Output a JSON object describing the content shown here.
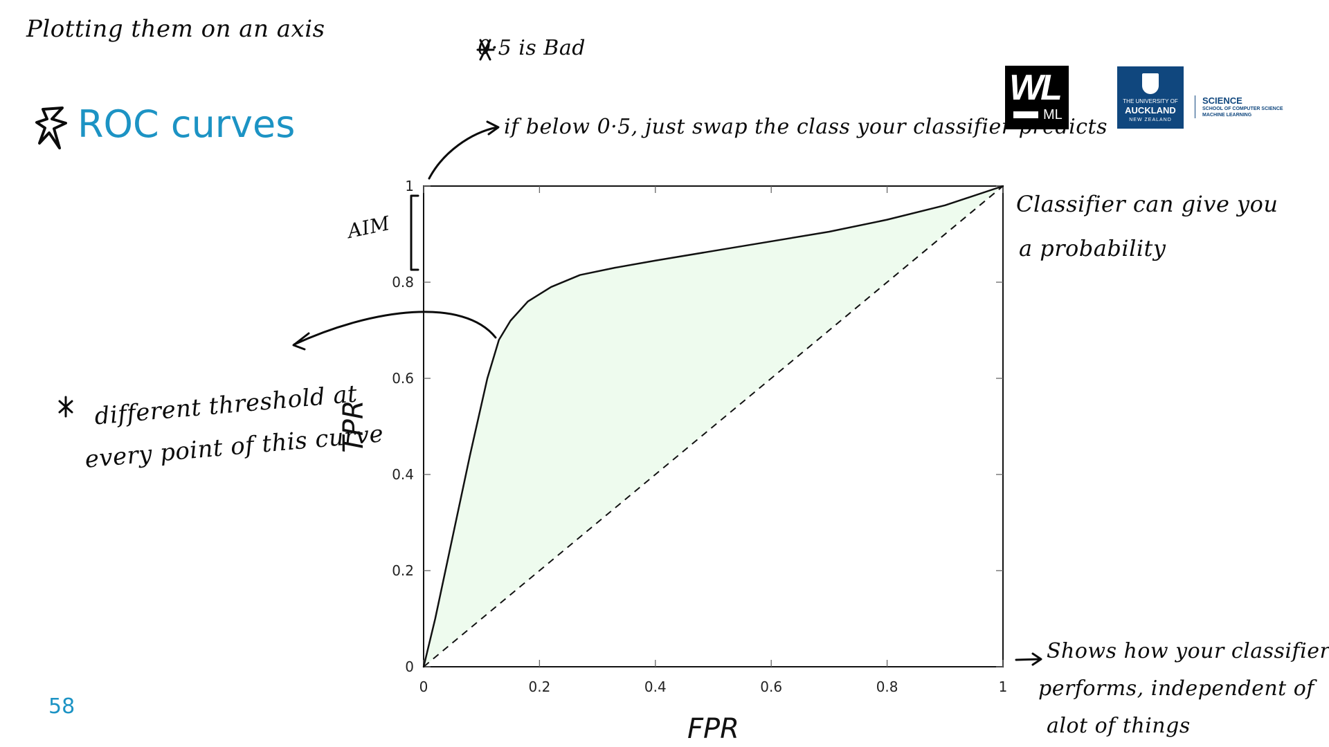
{
  "slide": {
    "title": "ROC curves",
    "page_number": "58"
  },
  "annotations": {
    "top_note": "Plotting them on an axis",
    "bad_note": "0·5 is Bad",
    "swap_note": "if below 0·5, just swap the class your classifier predicts",
    "aim": "AIM",
    "threshold_line1": "different threshold at",
    "threshold_line2": "every point of this curve",
    "probability_line1": "Classifier can give you",
    "probability_line2": "a probability",
    "performance_line1": "Shows how your classifier",
    "performance_line2": "performs, independent of",
    "performance_line3": "alot of things"
  },
  "logos": {
    "wl": "WL",
    "ml": "ML",
    "uoa_line1": "THE UNIVERSITY OF",
    "uoa_line2": "AUCKLAND",
    "uoa_line3": "NEW ZEALAND",
    "science": "SCIENCE",
    "school": "SCHOOL OF COMPUTER SCIENCE",
    "program": "MACHINE LEARNING"
  },
  "colors": {
    "accent": "#1c93c4",
    "fill": "#eefbee",
    "axis": "#111111"
  },
  "chart_data": {
    "type": "area",
    "xlabel": "FPR",
    "ylabel": "TPR",
    "xlim": [
      0,
      1
    ],
    "ylim": [
      0,
      1
    ],
    "xticks": [
      "0",
      "0.2",
      "0.4",
      "0.6",
      "0.8",
      "1"
    ],
    "yticks": [
      "0",
      "0.2",
      "0.4",
      "0.6",
      "0.8",
      "1"
    ],
    "grid": false,
    "series": [
      {
        "x": [
          0,
          0.02,
          0.05,
          0.08,
          0.11,
          0.13,
          0.15,
          0.18,
          0.22,
          0.27,
          0.33,
          0.4,
          0.5,
          0.6,
          0.7,
          0.8,
          0.9,
          1
        ],
        "y": [
          0,
          0.1,
          0.27,
          0.44,
          0.6,
          0.68,
          0.72,
          0.76,
          0.79,
          0.815,
          0.83,
          0.845,
          0.865,
          0.885,
          0.905,
          0.93,
          0.96,
          1
        ]
      },
      {
        "x": [
          0,
          1
        ],
        "y": [
          0,
          1
        ]
      }
    ]
  }
}
